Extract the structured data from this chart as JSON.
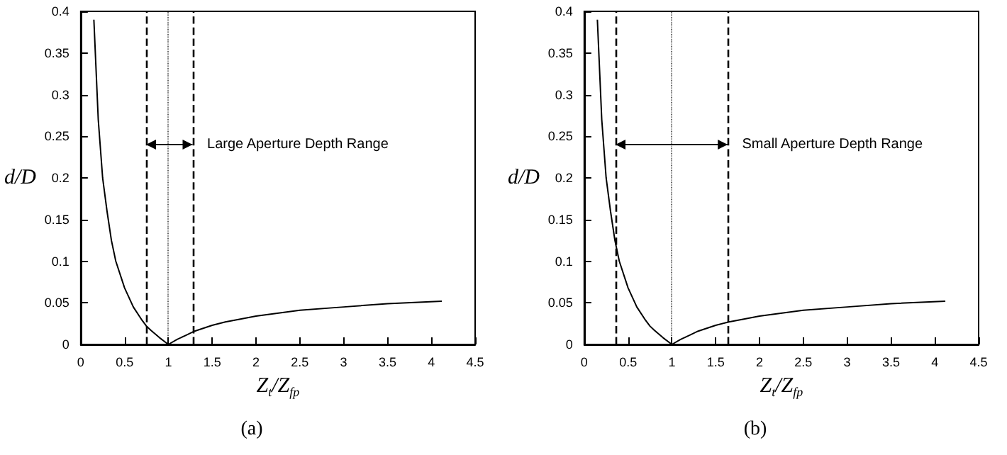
{
  "chart_data": [
    {
      "type": "line",
      "title": "(a)",
      "xlabel": "Z$_{t}$/Z$_{fp}$",
      "ylabel": "d/D",
      "xlim": [
        0,
        4.5
      ],
      "ylim": [
        0,
        0.4
      ],
      "xticks": [
        0,
        0.5,
        1,
        1.5,
        2,
        2.5,
        3,
        3.5,
        4,
        4.5
      ],
      "yticks": [
        0,
        0.05,
        0.1,
        0.15,
        0.2,
        0.25,
        0.3,
        0.35,
        0.4
      ],
      "grid": false,
      "marker": "none",
      "line_style": "solid",
      "series": [
        {
          "color": "#000000",
          "x": [
            0.15,
            0.2,
            0.25,
            0.3,
            0.35,
            0.4,
            0.5,
            0.6,
            0.7,
            0.75,
            0.8,
            0.9,
            1,
            1.1,
            1.2,
            1.3,
            1.5,
            1.65,
            1.8,
            2,
            2.5,
            3,
            3.5,
            4.12
          ],
          "values": [
            0.39,
            0.27,
            0.2,
            0.16,
            0.125,
            0.1,
            0.068,
            0.045,
            0.029,
            0.022,
            0.017,
            0.008,
            0,
            0.006,
            0.011,
            0.016,
            0.023,
            0.027,
            0.03,
            0.034,
            0.041,
            0.045,
            0.049,
            0.052
          ]
        }
      ],
      "ref_lines": [
        {
          "axis": "x",
          "value": 0.75,
          "line_style": "dashed",
          "color": "#000000"
        },
        {
          "axis": "x",
          "value": 1,
          "line_style": "dotted",
          "color": "#000000"
        },
        {
          "axis": "x",
          "value": 1.28,
          "line_style": "dashed",
          "color": "#000000"
        }
      ],
      "annotations": [
        {
          "text": "Large Aperture Depth Range",
          "x": 1.28,
          "y": 0.24
        }
      ]
    },
    {
      "type": "line",
      "title": "(b)",
      "xlabel": "Z$_{t}$/Z$_{fp}$",
      "ylabel": "d/D",
      "xlim": [
        0,
        4.5
      ],
      "ylim": [
        0,
        0.4
      ],
      "xticks": [
        0,
        0.5,
        1,
        1.5,
        2,
        2.5,
        3,
        3.5,
        4,
        4.5
      ],
      "yticks": [
        0,
        0.05,
        0.1,
        0.15,
        0.2,
        0.25,
        0.3,
        0.35,
        0.4
      ],
      "grid": false,
      "marker": "none",
      "line_style": "solid",
      "series": [
        {
          "color": "#000000",
          "x": [
            0.15,
            0.2,
            0.25,
            0.3,
            0.35,
            0.4,
            0.5,
            0.6,
            0.7,
            0.75,
            0.8,
            0.9,
            1,
            1.1,
            1.2,
            1.3,
            1.5,
            1.65,
            1.8,
            2,
            2.5,
            3,
            3.5,
            4.12
          ],
          "values": [
            0.39,
            0.27,
            0.2,
            0.16,
            0.125,
            0.1,
            0.068,
            0.045,
            0.029,
            0.022,
            0.017,
            0.008,
            0,
            0.006,
            0.011,
            0.016,
            0.023,
            0.027,
            0.03,
            0.034,
            0.041,
            0.045,
            0.049,
            0.052
          ]
        }
      ],
      "ref_lines": [
        {
          "axis": "x",
          "value": 0.36,
          "line_style": "dashed",
          "color": "#000000"
        },
        {
          "axis": "x",
          "value": 1,
          "line_style": "dotted",
          "color": "#000000"
        },
        {
          "axis": "x",
          "value": 1.64,
          "line_style": "dashed",
          "color": "#000000"
        }
      ],
      "annotations": [
        {
          "text": "Small Aperture Depth Range",
          "x": 1.64,
          "y": 0.24
        }
      ]
    }
  ]
}
